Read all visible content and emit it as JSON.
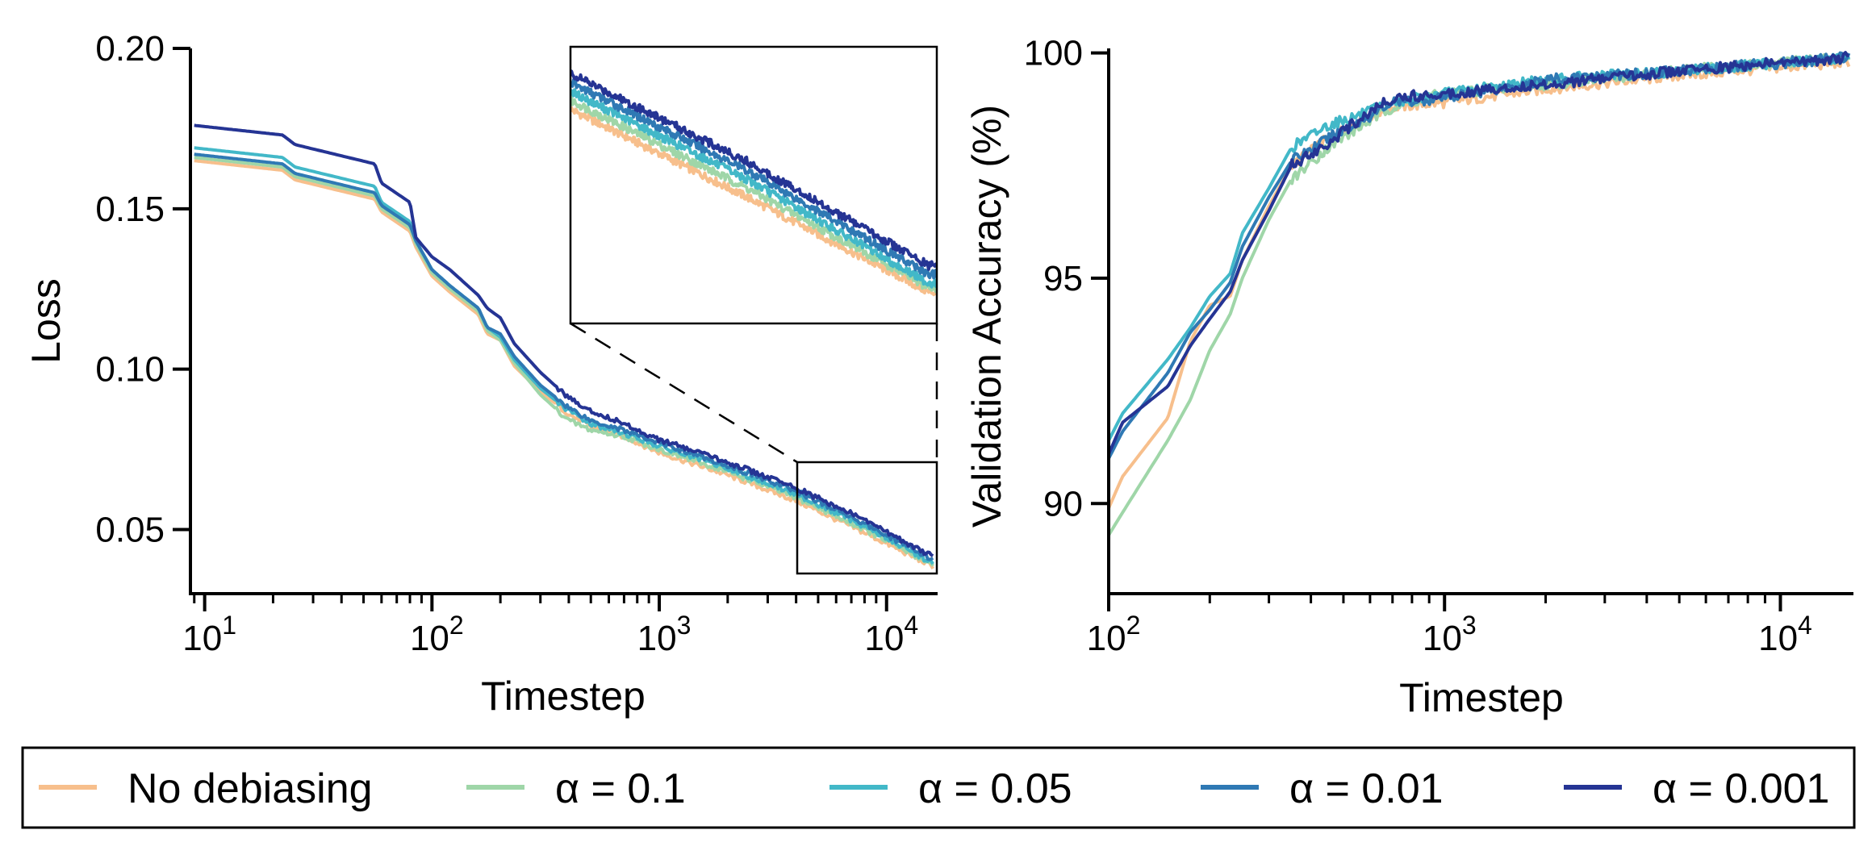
{
  "colors": {
    "no_debiasing": "#f7bf8c",
    "alpha_0_1": "#9fd6a8",
    "alpha_0_05": "#42b8c8",
    "alpha_0_01": "#2f79b4",
    "alpha_0_001": "#253494"
  },
  "legend": [
    {
      "label": "No debiasing",
      "color_key": "no_debiasing"
    },
    {
      "label": "α = 0.1",
      "color_key": "alpha_0_1"
    },
    {
      "label": "α = 0.05",
      "color_key": "alpha_0_05"
    },
    {
      "label": "α = 0.01",
      "color_key": "alpha_0_01"
    },
    {
      "label": "α = 0.001",
      "color_key": "alpha_0_001"
    }
  ],
  "chart_data": [
    {
      "type": "line",
      "xlabel": "Timestep",
      "ylabel": "Loss",
      "xscale": "log",
      "xlim": [
        8.8,
        16500
      ],
      "ylim": [
        0.03,
        0.2
      ],
      "y_ticks": [
        {
          "value": 0.05,
          "label": "0.05"
        },
        {
          "value": 0.1,
          "label": "0.10"
        },
        {
          "value": 0.15,
          "label": "0.15"
        },
        {
          "value": 0.2,
          "label": "0.20"
        }
      ],
      "x_ticks": [
        {
          "value": 10,
          "base": "10",
          "exp": "1"
        },
        {
          "value": 100,
          "base": "10",
          "exp": "2"
        },
        {
          "value": 1000,
          "base": "10",
          "exp": "3"
        },
        {
          "value": 10000,
          "base": "10",
          "exp": "4"
        }
      ],
      "inset": {
        "xlim": [
          4000,
          16500
        ],
        "ylim": [
          0.035,
          0.066
        ]
      },
      "series": [
        {
          "name": "No debiasing",
          "color_key": "no_debiasing",
          "x": [
            9,
            22,
            25,
            56,
            60,
            80,
            85,
            100,
            120,
            160,
            175,
            200,
            230,
            300,
            400,
            500,
            700,
            1000,
            2000,
            4000,
            8000,
            16000
          ],
          "y": [
            0.165,
            0.162,
            0.159,
            0.153,
            0.149,
            0.143,
            0.138,
            0.129,
            0.124,
            0.117,
            0.111,
            0.109,
            0.101,
            0.093,
            0.086,
            0.082,
            0.079,
            0.074,
            0.067,
            0.059,
            0.049,
            0.0385
          ]
        },
        {
          "name": "α = 0.1",
          "color_key": "alpha_0_1",
          "x": [
            9,
            22,
            25,
            56,
            60,
            80,
            85,
            100,
            120,
            160,
            175,
            200,
            230,
            300,
            400,
            500,
            700,
            1000,
            2000,
            4000,
            8000,
            16000
          ],
          "y": [
            0.166,
            0.163,
            0.16,
            0.154,
            0.15,
            0.144,
            0.139,
            0.13,
            0.125,
            0.118,
            0.112,
            0.109,
            0.102,
            0.092,
            0.084,
            0.081,
            0.079,
            0.075,
            0.068,
            0.06,
            0.05,
            0.039
          ]
        },
        {
          "name": "α = 0.05",
          "color_key": "alpha_0_05",
          "x": [
            9,
            22,
            25,
            56,
            60,
            80,
            85,
            100,
            120,
            160,
            175,
            200,
            230,
            300,
            400,
            500,
            700,
            1000,
            2000,
            4000,
            8000,
            16000
          ],
          "y": [
            0.169,
            0.166,
            0.163,
            0.157,
            0.152,
            0.146,
            0.14,
            0.131,
            0.126,
            0.119,
            0.113,
            0.11,
            0.103,
            0.094,
            0.087,
            0.083,
            0.08,
            0.076,
            0.069,
            0.061,
            0.051,
            0.0395
          ]
        },
        {
          "name": "α = 0.01",
          "color_key": "alpha_0_01",
          "x": [
            9,
            22,
            25,
            56,
            60,
            80,
            85,
            100,
            120,
            160,
            175,
            200,
            230,
            300,
            400,
            500,
            700,
            1000,
            2000,
            4000,
            8000,
            16000
          ],
          "y": [
            0.167,
            0.164,
            0.161,
            0.155,
            0.151,
            0.145,
            0.14,
            0.131,
            0.126,
            0.119,
            0.113,
            0.111,
            0.104,
            0.095,
            0.088,
            0.084,
            0.081,
            0.077,
            0.07,
            0.062,
            0.052,
            0.0405
          ]
        },
        {
          "name": "α = 0.001",
          "color_key": "alpha_0_001",
          "x": [
            9,
            22,
            25,
            56,
            60,
            80,
            85,
            100,
            120,
            160,
            175,
            200,
            230,
            300,
            400,
            500,
            700,
            1000,
            2000,
            4000,
            8000,
            16000
          ],
          "y": [
            0.176,
            0.173,
            0.17,
            0.164,
            0.158,
            0.152,
            0.141,
            0.135,
            0.131,
            0.123,
            0.119,
            0.116,
            0.108,
            0.099,
            0.091,
            0.087,
            0.083,
            0.078,
            0.071,
            0.063,
            0.053,
            0.0415
          ]
        }
      ]
    },
    {
      "type": "line",
      "xlabel": "Timestep",
      "ylabel": "Validation Accuracy (%)",
      "xscale": "log",
      "xlim": [
        100,
        16500
      ],
      "ylim": [
        88,
        100.1
      ],
      "y_ticks": [
        {
          "value": 90,
          "label": "90"
        },
        {
          "value": 95,
          "label": "95"
        },
        {
          "value": 100,
          "label": "100"
        }
      ],
      "x_ticks": [
        {
          "value": 100,
          "base": "10",
          "exp": "2"
        },
        {
          "value": 1000,
          "base": "10",
          "exp": "3"
        },
        {
          "value": 10000,
          "base": "10",
          "exp": "4"
        }
      ],
      "series": [
        {
          "name": "No debiasing",
          "color_key": "no_debiasing",
          "x": [
            100,
            110,
            150,
            175,
            200,
            230,
            250,
            300,
            350,
            450,
            600,
            700,
            1000,
            2000,
            5000,
            16000
          ],
          "y": [
            89.9,
            90.6,
            91.9,
            93.6,
            94.4,
            94.6,
            95.4,
            96.6,
            97.5,
            98.1,
            98.6,
            98.8,
            98.9,
            99.2,
            99.5,
            99.8
          ]
        },
        {
          "name": "α = 0.1",
          "color_key": "alpha_0_1",
          "x": [
            100,
            110,
            150,
            175,
            200,
            230,
            250,
            300,
            350,
            450,
            600,
            700,
            1000,
            2000,
            5000,
            16000
          ],
          "y": [
            89.3,
            89.8,
            91.4,
            92.3,
            93.4,
            94.2,
            95.0,
            96.3,
            97.2,
            97.9,
            98.5,
            98.8,
            99.1,
            99.3,
            99.6,
            99.9
          ]
        },
        {
          "name": "α = 0.05",
          "color_key": "alpha_0_05",
          "x": [
            100,
            110,
            150,
            175,
            200,
            230,
            250,
            300,
            350,
            450,
            600,
            700,
            1000,
            2000,
            5000,
            16000
          ],
          "y": [
            91.4,
            92.0,
            93.2,
            93.9,
            94.6,
            95.1,
            96.0,
            97.0,
            97.9,
            98.4,
            98.7,
            98.9,
            99.1,
            99.4,
            99.6,
            99.9
          ]
        },
        {
          "name": "α = 0.01",
          "color_key": "alpha_0_01",
          "x": [
            100,
            110,
            150,
            175,
            200,
            230,
            250,
            300,
            350,
            450,
            600,
            700,
            1000,
            2000,
            5000,
            16000
          ],
          "y": [
            91.0,
            91.6,
            92.9,
            93.8,
            94.3,
            94.9,
            95.7,
            96.8,
            97.6,
            98.1,
            98.6,
            98.9,
            99.0,
            99.4,
            99.6,
            99.9
          ]
        },
        {
          "name": "α = 0.001",
          "color_key": "alpha_0_001",
          "x": [
            100,
            110,
            150,
            175,
            200,
            230,
            250,
            300,
            350,
            450,
            600,
            700,
            1000,
            2000,
            5000,
            16000
          ],
          "y": [
            91.1,
            91.8,
            92.6,
            93.5,
            94.1,
            94.7,
            95.4,
            96.5,
            97.5,
            98.0,
            98.7,
            99.0,
            99.1,
            99.3,
            99.6,
            99.9
          ]
        }
      ]
    }
  ]
}
